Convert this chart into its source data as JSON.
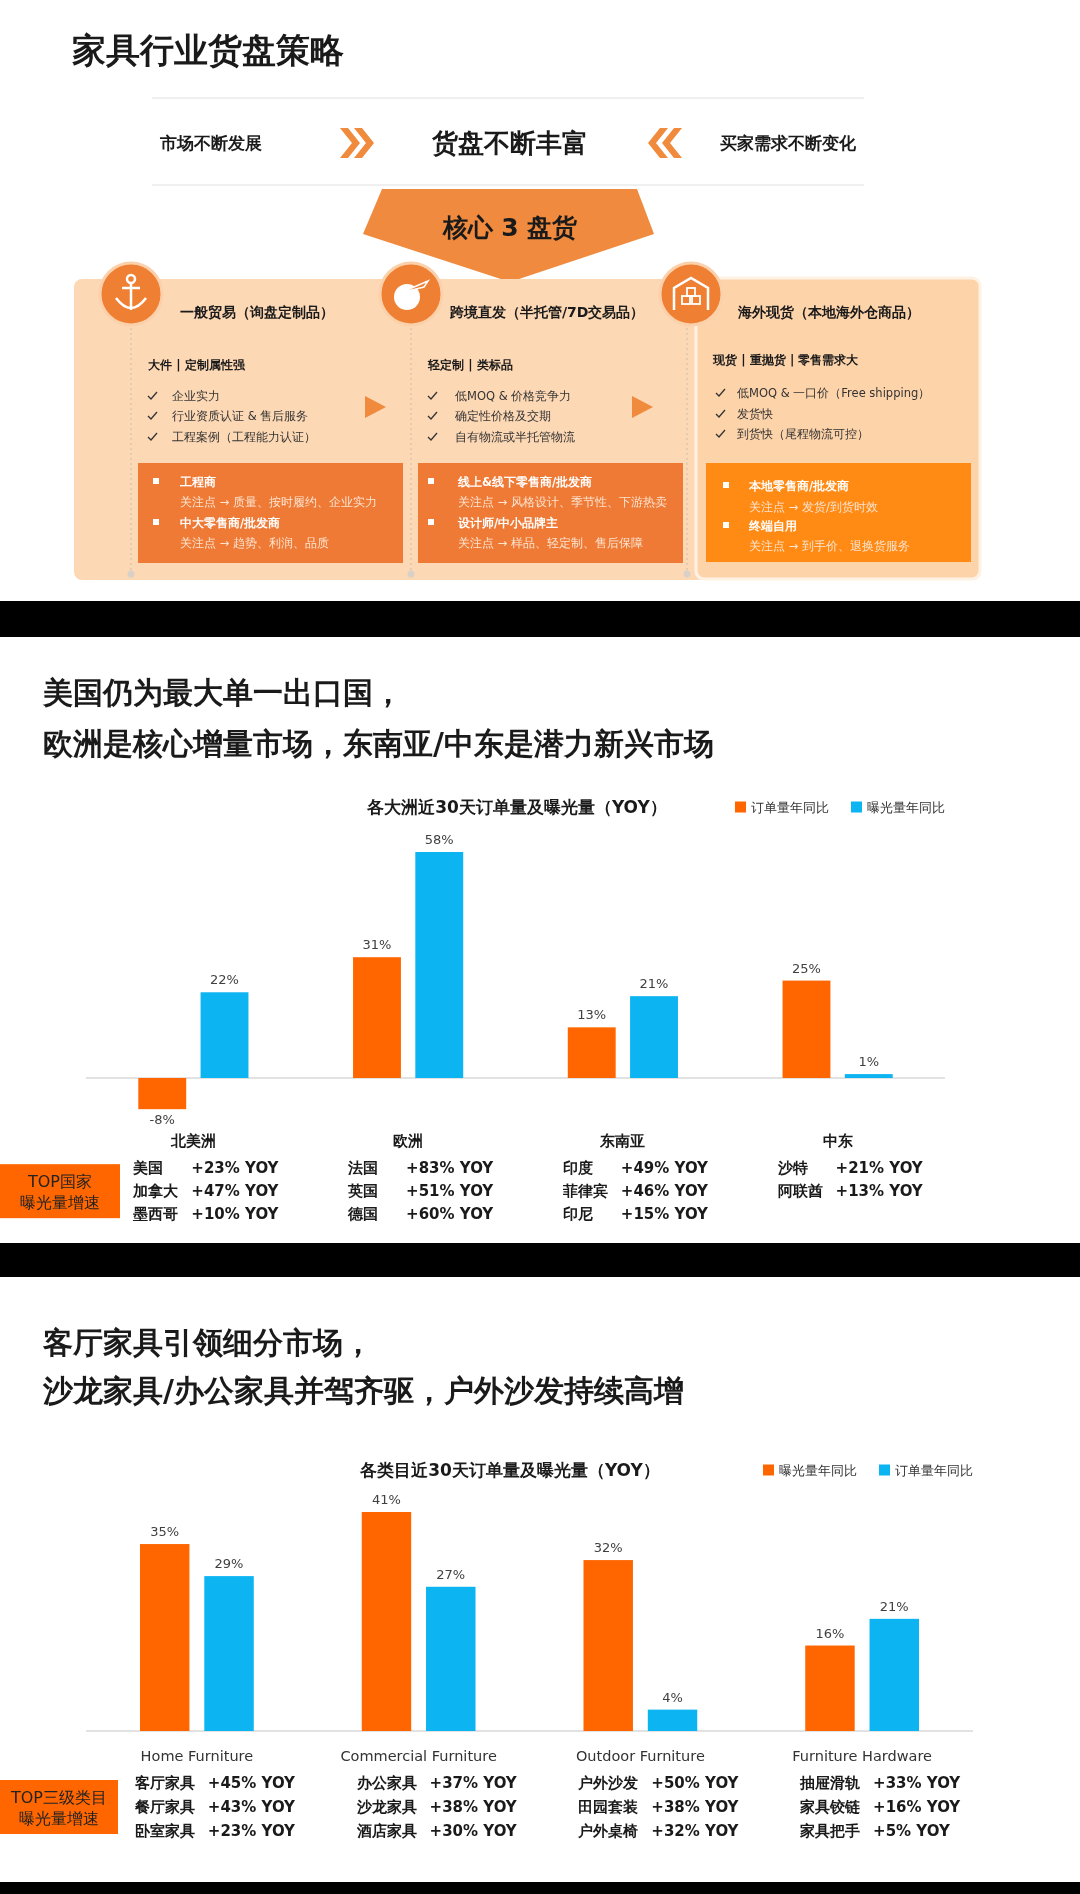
{
  "chart_data": [
    {
      "type": "other",
      "title": "家具行业货盘策略",
      "annotations": [
        "市场不断发展",
        "货盘不断丰富",
        "买家需求不断变化",
        "核心 3 盘货",
        "一般贸易（询盘定制品）",
        "大件 | 定制属性强",
        "企业实力",
        "行业资质认证 & 售后服务",
        "工程案例（工程能力认证）",
        "工程商",
        "关注点 → 质量、按时履约、企业实力",
        "中大零售商/批发商",
        "关注点 → 趋势、利润、品质",
        "跨境直发（半托管/7D交易品）",
        "轻定制 | 类标品",
        "低MOQ & 价格竞争力",
        "确定性价格及交期",
        "自有物流或半托管物流",
        "线上&线下零售商/批发商",
        "关注点 → 风格设计、季节性、下游热卖",
        "设计师/中小品牌主",
        "关注点 → 样品、轻定制、售后保障",
        "海外现货（本地海外仓商品）",
        "现货 | 重抛货 | 零售需求大",
        "低MOQ & 一口价（Free shipping）",
        "发货快",
        "到货快（尾程物流可控）",
        "本地零售商/批发商",
        "关注点 → 发货/到货时效",
        "终端自用",
        "关注点 → 到手价、退换货服务"
      ]
    },
    {
      "type": "bar",
      "title": "美国仍为最大单一出口国，欧洲是核心增量市场，东南亚/中东是潜力新兴市场",
      "subtitle": "各大洲近30天订单量及曝光量（YOY）",
      "categories": [
        "北美洲",
        "欧洲",
        "东南亚",
        "中东"
      ],
      "series": [
        {
          "name": "订单量年同比",
          "color": "#ff6600",
          "values": [
            -8,
            31,
            13,
            25
          ],
          "value_labels": [
            "-8%",
            "31%",
            "13%",
            "25%"
          ]
        },
        {
          "name": "曝光量年同比",
          "color": "#0db4f2",
          "values": [
            22,
            58,
            21,
            1
          ],
          "value_labels": [
            "22%",
            "58%",
            "21%",
            "1%"
          ]
        }
      ],
      "legend": "top right",
      "annotations": [
        "TOP国家",
        "曝光量增速",
        "美国 +23% YOY\n加拿大 +47% YOY\n墨西哥 +10% YOY",
        "法国 +83% YOY\n英国 +51% YOY\n德国 +60% YOY",
        "印度 +49% YOY\n菲律宾 +46% YOY\n印尼 +15% YOY",
        "沙特 +21% YOY\n阿联酋 +13% YOY"
      ]
    },
    {
      "type": "bar",
      "title": "客厅家具引领细分市场，沙龙家具/办公家具并驾齐驱，户外沙发持续高增",
      "subtitle": "各类目近30天订单量及曝光量（YOY）",
      "categories": [
        "Home Furniture",
        "Commercial Furniture",
        "Outdoor Furniture",
        "Furniture Hardware"
      ],
      "series": [
        {
          "name": "曝光量年同比",
          "color": "#ff6600",
          "values": [
            35,
            41,
            32,
            16
          ],
          "value_labels": [
            "35%",
            "41%",
            "32%",
            "16%"
          ]
        },
        {
          "name": "订单量年同比",
          "color": "#0db4f2",
          "values": [
            29,
            27,
            4,
            21
          ],
          "value_labels": [
            "29%",
            "27%",
            "4%",
            "21%"
          ]
        }
      ],
      "legend": "top right",
      "annotations": [
        "TOP三级类目",
        "曝光量增速",
        "客厅家具 +45% YOY\n餐厅家具 +43% YOY\n卧室家具 +23% YOY",
        "办公家具 +37% YOY\n沙龙家具 +38% YOY\n酒店家具 +30% YOY",
        "户外沙发 +50% YOY\n田园套装 +38% YOY\n户外桌椅 +32% YOY",
        "抽屉滑轨 +33% YOY\n家具铰链 +16% YOY\n家具把手 +5% YOY"
      ]
    }
  ]
}
